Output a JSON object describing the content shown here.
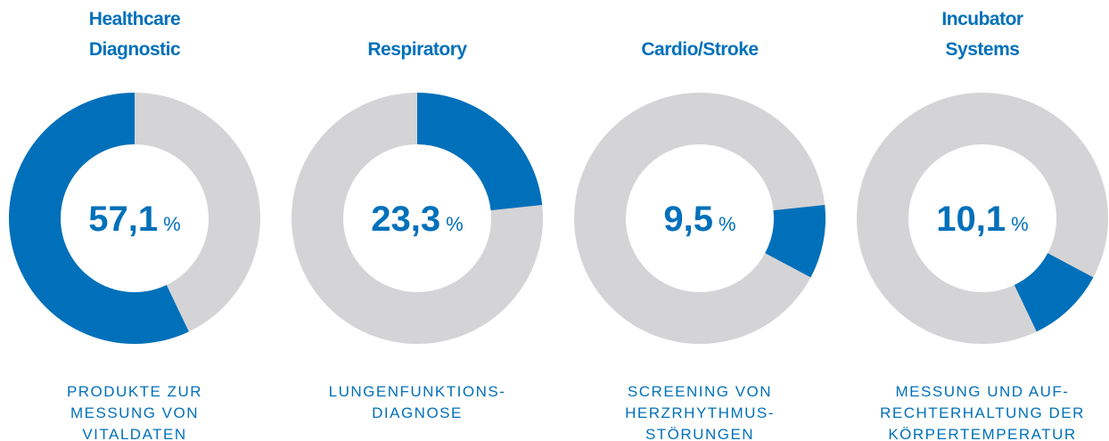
{
  "chart_data": [
    {
      "type": "donut",
      "title": [
        "Healthcare",
        "Diagnostic"
      ],
      "value": 57.1,
      "value_label": "57,1",
      "unit": "%",
      "color": "#0070ba",
      "rest_color": "#d4d4d6",
      "description": [
        "PRODUKTE ZUR",
        "MESSUNG VON",
        "VITALDATEN"
      ]
    },
    {
      "type": "donut",
      "title": [
        "Respiratory"
      ],
      "value": 23.3,
      "value_label": "23,3",
      "unit": "%",
      "color": "#0070ba",
      "rest_color": "#d4d4d6",
      "description": [
        "LUNGENFUNKTIONS-",
        "DIAGNOSE"
      ]
    },
    {
      "type": "donut",
      "title": [
        "Cardio/Stroke"
      ],
      "value": 9.5,
      "value_label": "9,5",
      "unit": "%",
      "color": "#0070ba",
      "rest_color": "#d4d4d6",
      "description": [
        "SCREENING VON",
        "HERZRHYTHMUS-",
        "STÖRUNGEN"
      ]
    },
    {
      "type": "donut",
      "title": [
        "Incubator",
        "Systems"
      ],
      "value": 10.1,
      "value_label": "10,1",
      "unit": "%",
      "color": "#0070ba",
      "rest_color": "#d4d4d6",
      "description": [
        "MESSUNG UND AUF-",
        "RECHTERHALTUNG DER",
        "KÖRPERTEMPERATUR"
      ]
    }
  ]
}
